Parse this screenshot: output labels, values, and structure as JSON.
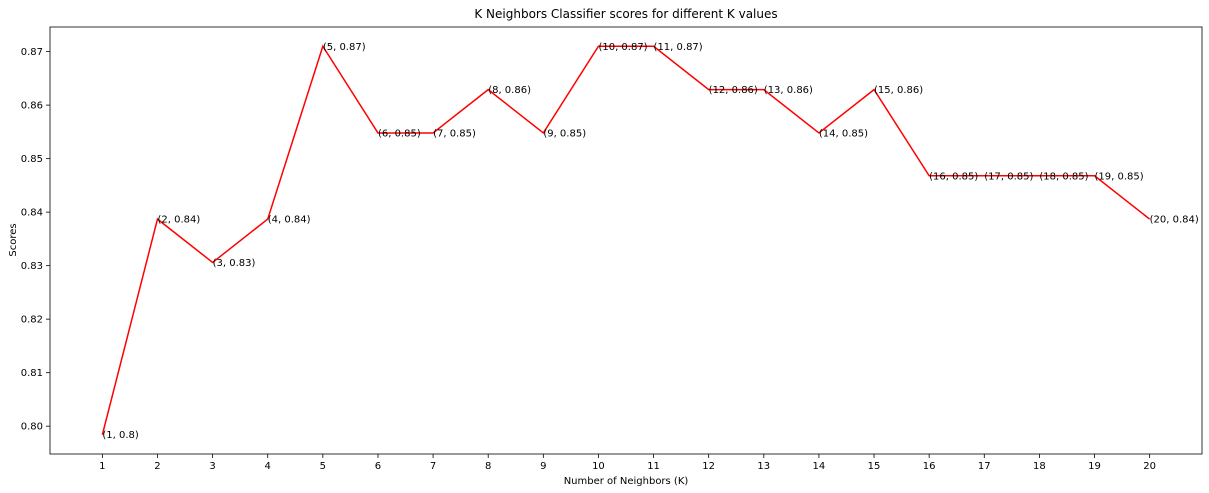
{
  "chart_data": {
    "type": "line",
    "title": "K Neighbors Classifier scores for different K values",
    "xlabel": "Number of Neighbors (K)",
    "ylabel": "Scores",
    "x": [
      1,
      2,
      3,
      4,
      5,
      6,
      7,
      8,
      9,
      10,
      11,
      12,
      13,
      14,
      15,
      16,
      17,
      18,
      19,
      20
    ],
    "series": [
      {
        "values": [
          0.7984,
          0.8387,
          0.8306,
          0.8387,
          0.871,
          0.8548,
          0.8548,
          0.8629,
          0.8548,
          0.871,
          0.871,
          0.8629,
          0.8629,
          0.8548,
          0.8629,
          0.8468,
          0.8468,
          0.8468,
          0.8468,
          0.8387
        ],
        "color": "#ff0000"
      }
    ],
    "point_labels": [
      "(1, 0.8)",
      "(2, 0.84)",
      "(3, 0.83)",
      "(4, 0.84)",
      "(5, 0.87)",
      "(6, 0.85)",
      "(7, 0.85)",
      "(8, 0.86)",
      "(9, 0.85)",
      "(10, 0.87)",
      "(11, 0.87)",
      "(12, 0.86)",
      "(13, 0.86)",
      "(14, 0.85)",
      "(15, 0.86)",
      "(16, 0.85)",
      "(17, 0.85)",
      "(18, 0.85)",
      "(19, 0.85)",
      "(20, 0.84)"
    ],
    "xticks": [
      "1",
      "2",
      "3",
      "4",
      "5",
      "6",
      "7",
      "8",
      "9",
      "10",
      "11",
      "12",
      "13",
      "14",
      "15",
      "16",
      "17",
      "18",
      "19",
      "20"
    ],
    "yticks": [
      0.8,
      0.81,
      0.82,
      0.83,
      0.84,
      0.85,
      0.86,
      0.87
    ],
    "ytick_labels": [
      "0.80",
      "0.81",
      "0.82",
      "0.83",
      "0.84",
      "0.85",
      "0.86",
      "0.87"
    ],
    "xlim": [
      0.05,
      20.95
    ],
    "ylim": [
      0.7948,
      0.8746
    ],
    "grid": false,
    "legend": false
  }
}
